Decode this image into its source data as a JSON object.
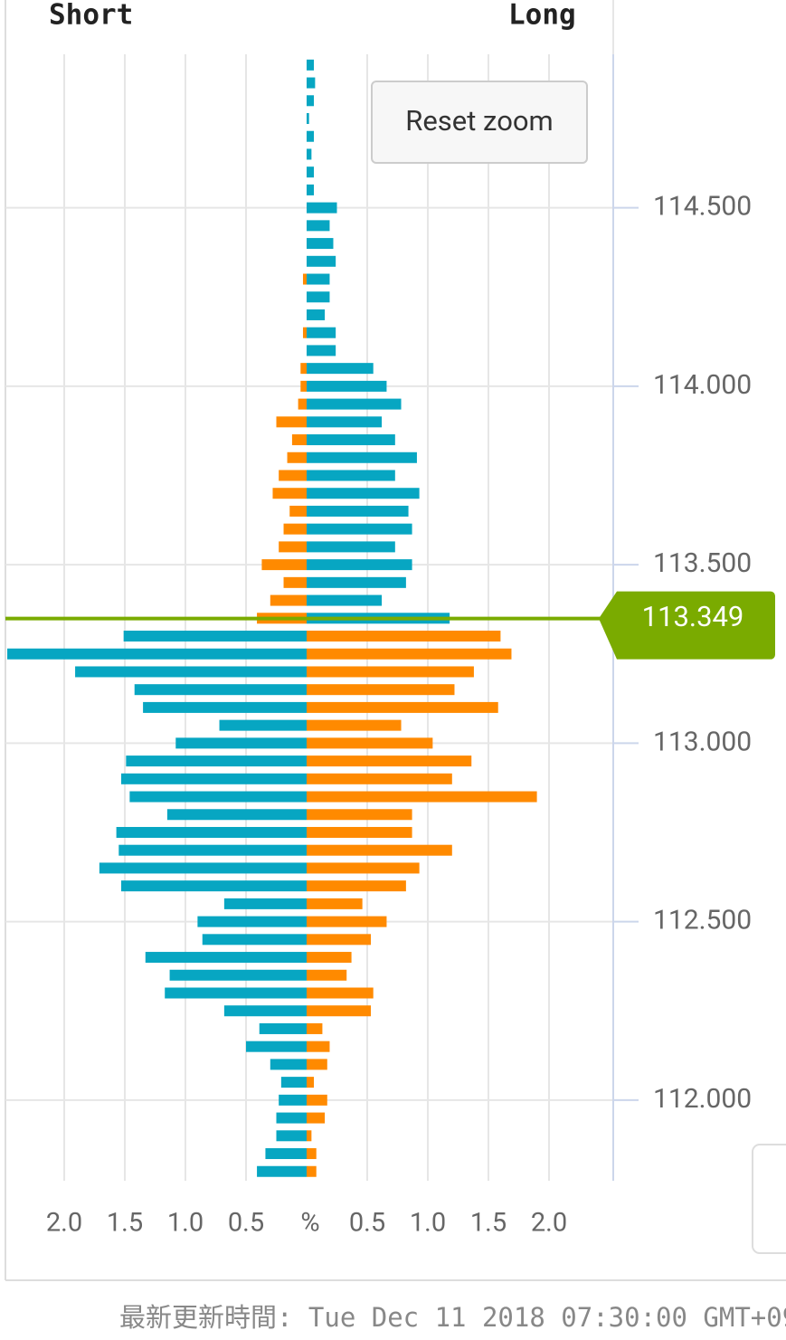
{
  "chart_data": {
    "type": "butterfly",
    "reset_zoom": "Reset zoom",
    "footer": "最新更新時間: Tue Dec 11 2018 07:30:00 GMT+09",
    "y": [
      114.9,
      114.85,
      114.8,
      114.75,
      114.7,
      114.65,
      114.6,
      114.55,
      114.5,
      114.45,
      114.4,
      114.35,
      114.3,
      114.25,
      114.2,
      114.15,
      114.1,
      114.05,
      114.0,
      113.95,
      113.9,
      113.85,
      113.8,
      113.75,
      113.7,
      113.65,
      113.6,
      113.55,
      113.5,
      113.45,
      113.4,
      113.35,
      113.3,
      113.25,
      113.2,
      113.15,
      113.1,
      113.05,
      113.0,
      112.95,
      112.9,
      112.85,
      112.8,
      112.75,
      112.7,
      112.65,
      112.6,
      112.55,
      112.5,
      112.45,
      112.4,
      112.35,
      112.3,
      112.25,
      112.2,
      112.15,
      112.1,
      112.05,
      112.0,
      111.95,
      111.9,
      111.85,
      111.8
    ],
    "series": [
      {
        "name": "Short",
        "color_above": "#ff8a00",
        "color_below": "#07a6c2",
        "values": [
          0,
          0,
          0,
          0,
          0,
          0,
          0,
          0,
          0,
          0,
          0,
          0,
          0.03,
          0,
          0,
          0.03,
          0,
          0.05,
          0.05,
          0.07,
          0.25,
          0.12,
          0.16,
          0.23,
          0.28,
          0.14,
          0.19,
          0.23,
          0.37,
          0.19,
          0.3,
          0.41,
          1.51,
          2.47,
          1.91,
          1.42,
          1.35,
          0.72,
          1.08,
          1.49,
          1.53,
          1.46,
          1.15,
          1.57,
          1.55,
          1.71,
          1.53,
          0.68,
          0.9,
          0.86,
          1.33,
          1.13,
          1.17,
          0.68,
          0.39,
          0.5,
          0.3,
          0.21,
          0.23,
          0.25,
          0.25,
          0.34,
          0.41
        ]
      },
      {
        "name": "Long",
        "color_above": "#07a6c2",
        "color_below": "#ff8a00",
        "values": [
          0.06,
          0.07,
          0.06,
          0.02,
          0.06,
          0.04,
          0.06,
          0.06,
          0.25,
          0.19,
          0.22,
          0.24,
          0.19,
          0.19,
          0.15,
          0.24,
          0.24,
          0.55,
          0.66,
          0.78,
          0.62,
          0.73,
          0.91,
          0.73,
          0.93,
          0.84,
          0.87,
          0.73,
          0.87,
          0.82,
          0.62,
          1.18,
          1.6,
          1.69,
          1.38,
          1.22,
          1.58,
          0.78,
          1.04,
          1.36,
          1.2,
          1.9,
          0.87,
          0.87,
          1.2,
          0.93,
          0.82,
          0.46,
          0.66,
          0.53,
          0.37,
          0.33,
          0.55,
          0.53,
          0.13,
          0.19,
          0.17,
          0.06,
          0.17,
          0.15,
          0.04,
          0.08,
          0.08
        ]
      }
    ],
    "current_price": {
      "value": 113.349,
      "label": "113.349",
      "color": "#7aab00"
    },
    "xlim": [
      0,
      2.5
    ],
    "xcenter_label": {
      "value": 0,
      "label": "%"
    },
    "xticks": [
      {
        "value": 0.5,
        "label": "0.5"
      },
      {
        "value": 1,
        "label": "1.0"
      },
      {
        "value": 1.5,
        "label": "1.5"
      },
      {
        "value": 2,
        "label": "2.0"
      }
    ],
    "ylim": [
      111.774,
      114.93
    ],
    "yticks": [
      {
        "value": 112,
        "label": "112.000"
      },
      {
        "value": 112.5,
        "label": "112.500"
      },
      {
        "value": 113,
        "label": "113.000"
      },
      {
        "value": 113.5,
        "label": "113.500"
      },
      {
        "value": 114,
        "label": "114.000"
      },
      {
        "value": 114.5,
        "label": "114.500"
      }
    ],
    "grid": true
  }
}
